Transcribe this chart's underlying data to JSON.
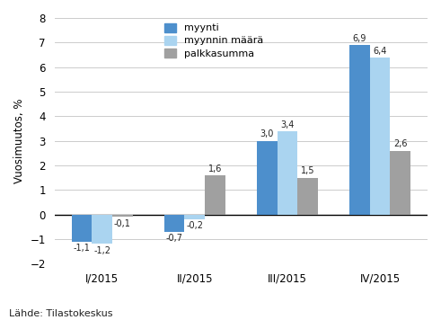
{
  "categories": [
    "I/2015",
    "II/2015",
    "III/2015",
    "IV/2015"
  ],
  "series": {
    "myynti": [
      -1.1,
      -0.7,
      3.0,
      6.9
    ],
    "myynnin määrä": [
      -1.2,
      -0.2,
      3.4,
      6.4
    ],
    "palkkasumma": [
      -0.1,
      1.6,
      1.5,
      2.6
    ]
  },
  "colors": {
    "myynti": "#4d8fcc",
    "myynnin määrä": "#aad4f0",
    "palkkasumma": "#a0a0a0"
  },
  "ylabel": "Vuosimuutos, %",
  "ylim": [
    -2,
    8
  ],
  "yticks": [
    -2,
    -1,
    0,
    1,
    2,
    3,
    4,
    5,
    6,
    7,
    8
  ],
  "source": "Lähde: Tilastokeskus",
  "legend_labels": [
    "myynti",
    "myynnin määrä",
    "palkkasumma"
  ],
  "bar_width": 0.22
}
